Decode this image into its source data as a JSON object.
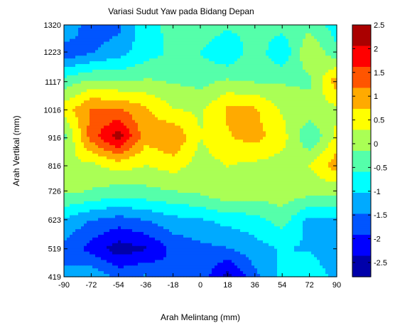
{
  "chart_data": {
    "type": "heatmap",
    "title": "Variasi Sudut Yaw pada Bidang Depan",
    "xlabel": "Arah Melintang (mm)",
    "ylabel": "Arah Vertikal (mm)",
    "x": [
      -90,
      -72,
      -54,
      -36,
      -18,
      0,
      18,
      36,
      54,
      72,
      90
    ],
    "y": [
      1320,
      1223,
      1117,
      1016,
      916,
      816,
      726,
      623,
      519,
      419
    ],
    "x_tick_labels": [
      "-90",
      "-72",
      "-54",
      "-36",
      "-18",
      "0",
      "18",
      "36",
      "54",
      "72",
      "90"
    ],
    "y_tick_labels": [
      "1320",
      "1223",
      "1117",
      "1016",
      "916",
      "816",
      "726",
      "623",
      "519",
      "419"
    ],
    "values": [
      [
        -1.0,
        -1.8,
        -1.6,
        -0.7,
        -0.5,
        -0.3,
        -0.5,
        -0.5,
        -0.4,
        -0.3,
        -0.8
      ],
      [
        -1.8,
        -1.5,
        -1.2,
        -0.8,
        -0.5,
        -0.6,
        -1.0,
        -0.3,
        -1.0,
        0.3,
        -0.5
      ],
      [
        -0.4,
        -0.1,
        -0.2,
        -0.1,
        -0.2,
        -0.3,
        -0.1,
        -0.2,
        -0.2,
        -0.3,
        1.0
      ],
      [
        0.5,
        1.2,
        1.2,
        0.8,
        0.3,
        0.2,
        0.8,
        0.8,
        0.2,
        0.2,
        0.2
      ],
      [
        -0.3,
        1.4,
        2.3,
        0.9,
        1.2,
        0.3,
        0.7,
        0.9,
        0.5,
        -0.6,
        0.4
      ],
      [
        0.2,
        0.2,
        0.5,
        0.3,
        0.5,
        0.1,
        0.3,
        0.2,
        0.1,
        0.3,
        1.0
      ],
      [
        -0.1,
        -0.2,
        -0.4,
        -0.3,
        -0.2,
        -0.1,
        0.2,
        0.1,
        0.1,
        0.0,
        -0.1
      ],
      [
        -1.1,
        -1.5,
        -1.7,
        -1.5,
        -1.2,
        -1.1,
        -0.9,
        -0.8,
        -0.4,
        -1.2,
        -1.1
      ],
      [
        -1.6,
        -2.1,
        -2.6,
        -2.4,
        -1.8,
        -1.6,
        -1.5,
        -1.2,
        -1.0,
        -1.1,
        -1.5
      ],
      [
        -1.4,
        -1.1,
        -1.6,
        -1.4,
        -1.9,
        -1.6,
        -2.6,
        -1.6,
        -0.9,
        -0.6,
        -1.2
      ]
    ],
    "clim": [
      -2.8,
      2.5
    ],
    "colorbar_ticks": [
      2.5,
      2,
      1.5,
      1,
      0.5,
      0,
      -0.5,
      -1,
      -1.5,
      -2,
      -2.5
    ],
    "colorbar_tick_labels": [
      "2.5",
      "2",
      "1.5",
      "1",
      "0.5",
      "0",
      "-0.5",
      "-1",
      "-1.5",
      "-2",
      "-2.5"
    ],
    "colormap": "jet",
    "colorbar_position": "right",
    "grid": false
  }
}
